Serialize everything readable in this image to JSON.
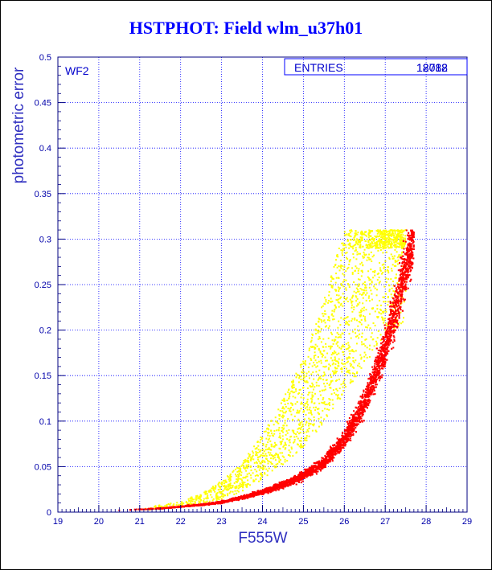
{
  "chart_data": {
    "type": "scatter",
    "title": "HSTPHOT: Field wlm_u37h01",
    "xlabel": "F555W",
    "ylabel": "photometric error",
    "xlim": [
      19,
      29
    ],
    "ylim": [
      0,
      0.5
    ],
    "x_ticks": [
      "19",
      "20",
      "21",
      "22",
      "23",
      "24",
      "25",
      "26",
      "27",
      "28",
      "29"
    ],
    "y_ticks": [
      "0",
      "0.05",
      "0.1",
      "0.15",
      "0.2",
      "0.25",
      "0.3",
      "0.35",
      "0.4",
      "0.45",
      "0.5"
    ],
    "grid": true,
    "panel_label": "WF2",
    "stats_box": {
      "label": "ENTRIES",
      "values": [
        "12088",
        "18712"
      ]
    },
    "colors": {
      "grid": "#0000ff",
      "text": "#0000ff",
      "red_series": "#ff0000",
      "yellow_series": "#ffff00"
    },
    "series": [
      {
        "color": "yellow",
        "x": [
          21.0,
          21.5,
          22.0,
          22.5,
          23.0,
          23.5,
          24.0,
          24.5,
          25.0,
          25.5,
          26.0,
          26.5,
          27.0,
          27.5
        ],
        "y": [
          0.003,
          0.005,
          0.008,
          0.013,
          0.022,
          0.035,
          0.055,
          0.08,
          0.11,
          0.15,
          0.2,
          0.25,
          0.295,
          0.31
        ]
      },
      {
        "color": "red",
        "x": [
          20.5,
          21.0,
          21.5,
          22.0,
          22.5,
          23.0,
          23.5,
          24.0,
          24.5,
          25.0,
          25.5,
          26.0,
          26.5,
          27.0,
          27.3,
          27.5,
          27.7
        ],
        "y": [
          0.002,
          0.003,
          0.004,
          0.006,
          0.008,
          0.011,
          0.016,
          0.022,
          0.03,
          0.04,
          0.055,
          0.08,
          0.12,
          0.18,
          0.23,
          0.27,
          0.305
        ]
      }
    ]
  }
}
